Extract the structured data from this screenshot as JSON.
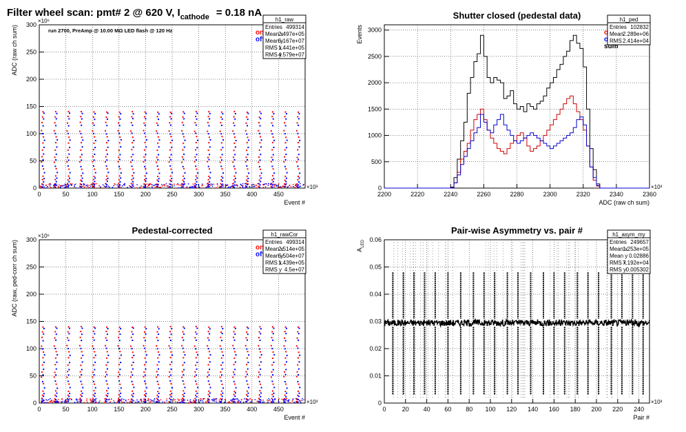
{
  "canvas_title_parts": {
    "prefix": "Filter wheel scan: pmt#   2 @   620 V, I",
    "subscript": "cathode",
    "suffix": "= 0.18 nA"
  },
  "chart_data": [
    {
      "id": "raw",
      "type": "scatter",
      "title": "",
      "annotation": "run 2700, PreAmp @ 10.00 MΩ LED flash @  120 Hz",
      "xlabel": "Event #",
      "ylabel": "ADC (raw ch sum)",
      "x_exponent": "×10³",
      "y_exponent": "×10⁶",
      "xlim": [
        0,
        500
      ],
      "ylim": [
        0,
        300
      ],
      "xticks": [
        "0",
        "50",
        "100",
        "150",
        "200",
        "250",
        "300",
        "350",
        "400",
        "450"
      ],
      "yticks": [
        "0",
        "50",
        "100",
        "150",
        "200",
        "250",
        "300"
      ],
      "legend": [
        {
          "label": "on",
          "color": "#ff0000"
        },
        {
          "label": "off",
          "color": "#0000ff"
        }
      ],
      "stats": {
        "name": "h1_raw",
        "rows": [
          [
            "Entries",
            "499314"
          ],
          [
            "Mean x",
            "2.497e+05"
          ],
          [
            "Mean y",
            "5.167e+07"
          ],
          [
            "RMS x",
            "1.441e+05"
          ],
          [
            "RMS y",
            "4.579e+07"
          ]
        ]
      },
      "series": [
        {
          "name": "on",
          "color": "#ff0000",
          "levels": [
            3,
            8,
            15,
            22,
            35,
            48,
            57,
            70,
            83,
            94,
            105,
            120,
            131,
            140
          ]
        },
        {
          "name": "off",
          "color": "#0000ff",
          "levels": [
            2,
            6,
            12,
            18,
            28,
            40,
            52,
            62,
            75,
            88,
            100,
            115,
            127,
            137
          ]
        }
      ],
      "period": 24,
      "grid": true
    },
    {
      "id": "ped",
      "type": "line",
      "title": "Shutter closed (pedestal data)",
      "xlabel": "ADC (raw ch sum)",
      "ylabel": "Events",
      "x_exponent": "×10³",
      "xlim": [
        2200,
        2360
      ],
      "ylim": [
        0,
        3100
      ],
      "xticks": [
        "2200",
        "2220",
        "2240",
        "2260",
        "2280",
        "2300",
        "2320",
        "2340",
        "2360"
      ],
      "yticks": [
        "0",
        "500",
        "1000",
        "1500",
        "2000",
        "2500",
        "3000"
      ],
      "legend": [
        {
          "label": "on",
          "color": "#ff0000"
        },
        {
          "label": "off",
          "color": "#0000ff"
        },
        {
          "label": "sum",
          "color": "#000000"
        }
      ],
      "stats": {
        "name": "h1_ped",
        "rows": [
          [
            "Entries",
            "102832"
          ],
          [
            "Mean",
            "2.289e+06"
          ],
          [
            "RMS",
            "2.414e+04"
          ]
        ]
      },
      "series": [
        {
          "name": "sum",
          "color": "#000000",
          "x": [
            2240,
            2242,
            2244,
            2246,
            2248,
            2250,
            2252,
            2254,
            2256,
            2258,
            2260,
            2262,
            2264,
            2266,
            2268,
            2270,
            2272,
            2274,
            2276,
            2278,
            2280,
            2282,
            2284,
            2286,
            2288,
            2290,
            2292,
            2294,
            2296,
            2298,
            2300,
            2302,
            2304,
            2306,
            2308,
            2310,
            2312,
            2314,
            2316,
            2318,
            2320,
            2322,
            2324,
            2326,
            2328,
            2330
          ],
          "y": [
            20,
            200,
            550,
            900,
            1250,
            1800,
            2100,
            2400,
            2550,
            2900,
            2500,
            2100,
            2000,
            2100,
            2050,
            2000,
            1700,
            1750,
            1850,
            1600,
            1500,
            1550,
            1450,
            1600,
            1550,
            1500,
            1600,
            1650,
            1750,
            1900,
            2000,
            2100,
            2250,
            2350,
            2500,
            2600,
            2800,
            2900,
            2750,
            2650,
            2300,
            1500,
            750,
            350,
            80,
            0
          ]
        },
        {
          "name": "on",
          "color": "#cc0000",
          "x": [
            2240,
            2242,
            2244,
            2246,
            2248,
            2250,
            2252,
            2254,
            2256,
            2258,
            2260,
            2262,
            2264,
            2266,
            2268,
            2270,
            2272,
            2274,
            2276,
            2278,
            2280,
            2282,
            2284,
            2286,
            2288,
            2290,
            2292,
            2294,
            2296,
            2298,
            2300,
            2302,
            2304,
            2306,
            2308,
            2310,
            2312,
            2314,
            2316,
            2318,
            2320,
            2322,
            2324,
            2326,
            2328,
            2330
          ],
          "y": [
            10,
            100,
            300,
            550,
            700,
            850,
            1100,
            1300,
            1400,
            1500,
            1300,
            1100,
            950,
            850,
            750,
            700,
            650,
            750,
            850,
            900,
            1000,
            1050,
            950,
            800,
            700,
            750,
            800,
            900,
            1000,
            1100,
            1200,
            1300,
            1400,
            1500,
            1600,
            1700,
            1750,
            1600,
            1450,
            1300,
            1100,
            800,
            400,
            150,
            40,
            0
          ]
        },
        {
          "name": "off",
          "color": "#0000cc",
          "x": [
            2240,
            2242,
            2244,
            2246,
            2248,
            2250,
            2252,
            2254,
            2256,
            2258,
            2260,
            2262,
            2264,
            2266,
            2268,
            2270,
            2272,
            2274,
            2276,
            2278,
            2280,
            2282,
            2284,
            2286,
            2288,
            2290,
            2292,
            2294,
            2296,
            2298,
            2300,
            2302,
            2304,
            2306,
            2308,
            2310,
            2312,
            2314,
            2316,
            2318,
            2320,
            2322,
            2324,
            2326,
            2328,
            2330
          ],
          "y": [
            10,
            100,
            250,
            450,
            600,
            750,
            900,
            1050,
            1150,
            1400,
            1250,
            1100,
            1050,
            1200,
            1300,
            1400,
            1200,
            1100,
            1000,
            900,
            850,
            900,
            950,
            1000,
            1050,
            1000,
            950,
            900,
            850,
            800,
            750,
            800,
            850,
            900,
            950,
            1000,
            1050,
            1150,
            1300,
            1350,
            1200,
            800,
            400,
            200,
            50,
            0
          ]
        }
      ],
      "grid": true
    },
    {
      "id": "rawCor",
      "type": "scatter",
      "title": "Pedestal-corrected",
      "xlabel": "Event #",
      "ylabel": "ADC (raw, ped-corr ch sum)",
      "x_exponent": "×10³",
      "y_exponent": "×10⁶",
      "xlim": [
        0,
        500
      ],
      "ylim": [
        0,
        300
      ],
      "xticks": [
        "0",
        "50",
        "100",
        "150",
        "200",
        "250",
        "300",
        "350",
        "400",
        "450"
      ],
      "yticks": [
        "0",
        "50",
        "100",
        "150",
        "200",
        "250",
        "300"
      ],
      "legend": [
        {
          "label": "on",
          "color": "#ff0000"
        },
        {
          "label": "off",
          "color": "#0000ff"
        }
      ],
      "stats": {
        "name": "h1_rawCor",
        "rows": [
          [
            "Entries",
            "499314"
          ],
          [
            "Mean x",
            "2.514e+05"
          ],
          [
            "Mean y",
            "5.504e+07"
          ],
          [
            "RMS x",
            "1.439e+05"
          ],
          [
            "RMS y",
            "4.5e+07"
          ]
        ]
      },
      "series": [
        {
          "name": "on",
          "color": "#ff0000",
          "levels": [
            3,
            8,
            15,
            22,
            35,
            48,
            57,
            70,
            83,
            94,
            105,
            120,
            131,
            140
          ]
        },
        {
          "name": "off",
          "color": "#0000ff",
          "levels": [
            2,
            6,
            12,
            18,
            28,
            40,
            52,
            62,
            75,
            88,
            100,
            115,
            127,
            137
          ]
        }
      ],
      "period": 24,
      "grid": true
    },
    {
      "id": "asym",
      "type": "scatter",
      "title": "Pair-wise Asymmetry vs. pair #",
      "xlabel": "Pair #",
      "ylabel": "A",
      "ylabel_sub": "LED",
      "x_exponent": "×10³",
      "xlim": [
        0,
        250
      ],
      "ylim": [
        0,
        0.06
      ],
      "xticks": [
        "0",
        "20",
        "40",
        "60",
        "80",
        "100",
        "120",
        "140",
        "160",
        "180",
        "200",
        "220",
        "240"
      ],
      "yticks": [
        "0",
        "0.01",
        "0.02",
        "0.03",
        "0.04",
        "0.05",
        "0.06"
      ],
      "stats": {
        "name": "h1_asym_my",
        "rows": [
          [
            "Entries",
            "249657"
          ],
          [
            "Mean x",
            "1.253e+05"
          ],
          [
            "Mean y",
            "0.02886"
          ],
          [
            "RMS x",
            "7.192e+04"
          ],
          [
            "RMS y",
            "0.005302"
          ]
        ]
      },
      "series": [
        {
          "name": "asym",
          "color": "#000000",
          "band_center": 0.0295,
          "band_halfwidth": 0.0012
        }
      ],
      "spike_x": [
        8,
        18,
        28,
        38,
        48,
        60,
        72,
        84,
        94,
        104,
        116,
        126,
        138,
        150,
        160,
        170,
        182,
        192,
        202,
        214,
        224,
        234,
        244
      ],
      "grid": true
    }
  ]
}
